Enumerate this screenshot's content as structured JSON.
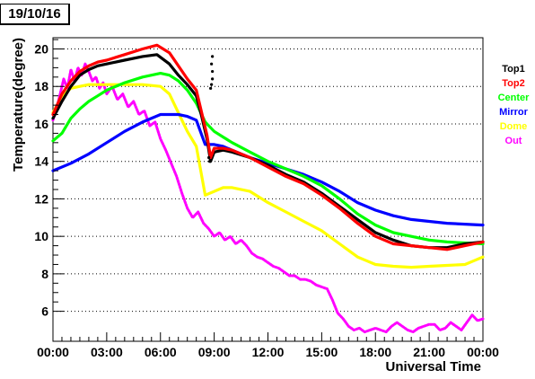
{
  "page": {
    "date_label": "19/10/16"
  },
  "chart_data": {
    "type": "line",
    "title": "",
    "xlabel": "Universal Time",
    "ylabel": "Temperature(degree)",
    "x_unit": "hours",
    "xlim": [
      0,
      24
    ],
    "ylim": [
      4.4,
      20.6
    ],
    "x_ticks": [
      {
        "value": 0,
        "label": "00:00"
      },
      {
        "value": 3,
        "label": "03:00"
      },
      {
        "value": 6,
        "label": "06:00"
      },
      {
        "value": 9,
        "label": "09:00"
      },
      {
        "value": 12,
        "label": "12:00"
      },
      {
        "value": 15,
        "label": "15:00"
      },
      {
        "value": 18,
        "label": "18:00"
      },
      {
        "value": 21,
        "label": "21:00"
      },
      {
        "value": 24,
        "label": "00:00"
      }
    ],
    "y_ticks": [
      {
        "value": 6,
        "label": "6"
      },
      {
        "value": 8,
        "label": "8"
      },
      {
        "value": 10,
        "label": "10"
      },
      {
        "value": 12,
        "label": "12"
      },
      {
        "value": 14,
        "label": "14"
      },
      {
        "value": 16,
        "label": "16"
      },
      {
        "value": 18,
        "label": "18"
      },
      {
        "value": 20,
        "label": "20"
      }
    ],
    "grid": "horizontal dotted",
    "legend_position": "right",
    "series": [
      {
        "name": "Top1",
        "color": "#000000",
        "x": [
          0,
          0.5,
          1,
          1.5,
          2,
          2.5,
          3,
          4,
          5,
          5.8,
          6.5,
          7,
          7.5,
          8,
          8.3,
          8.6,
          8.8,
          9,
          9.5,
          10,
          11,
          12,
          13,
          14,
          15,
          16,
          17,
          18,
          19,
          20,
          21,
          22,
          23,
          24
        ],
        "y": [
          16.3,
          17.2,
          18.0,
          18.6,
          18.9,
          19.1,
          19.2,
          19.4,
          19.6,
          19.7,
          19.2,
          18.6,
          18.1,
          17.5,
          16.4,
          15.2,
          14.0,
          14.5,
          14.6,
          14.5,
          14.2,
          13.8,
          13.3,
          12.9,
          12.3,
          11.6,
          10.9,
          10.2,
          9.8,
          9.5,
          9.4,
          9.4,
          9.6,
          9.7
        ]
      },
      {
        "name": "Top2",
        "color": "#ff0000",
        "x": [
          0,
          0.5,
          1,
          1.5,
          2,
          2.5,
          3,
          4,
          5,
          5.8,
          6.5,
          7,
          7.5,
          8,
          8.3,
          8.6,
          8.8,
          9,
          9.5,
          10,
          11,
          12,
          13,
          14,
          15,
          16,
          17,
          18,
          19,
          20,
          21,
          22,
          23,
          24
        ],
        "y": [
          16.5,
          17.6,
          18.3,
          18.8,
          19.1,
          19.3,
          19.4,
          19.7,
          20.0,
          20.2,
          19.8,
          19.1,
          18.4,
          17.8,
          16.6,
          15.4,
          14.2,
          14.7,
          14.7,
          14.6,
          14.2,
          13.7,
          13.2,
          12.8,
          12.2,
          11.5,
          10.7,
          10.0,
          9.6,
          9.5,
          9.4,
          9.3,
          9.5,
          9.7
        ]
      },
      {
        "name": "Center",
        "color": "#00ff00",
        "x": [
          0,
          0.5,
          1,
          1.5,
          2,
          2.5,
          3,
          4,
          5,
          6,
          6.5,
          7,
          7.5,
          8,
          8.5,
          9,
          9.5,
          10,
          11,
          12,
          13,
          14,
          15,
          16,
          17,
          18,
          19,
          20,
          21,
          22,
          23,
          24
        ],
        "y": [
          15.1,
          15.5,
          16.3,
          16.8,
          17.2,
          17.5,
          17.8,
          18.2,
          18.5,
          18.7,
          18.6,
          18.3,
          17.8,
          17.1,
          16.1,
          15.6,
          15.3,
          15.0,
          14.5,
          14.0,
          13.6,
          13.2,
          12.7,
          12.0,
          11.2,
          10.6,
          10.2,
          10.0,
          9.8,
          9.7,
          9.65,
          9.6
        ]
      },
      {
        "name": "Mirror",
        "color": "#0000ff",
        "x": [
          0,
          1,
          2,
          3,
          4,
          5,
          6,
          7,
          7.5,
          8,
          8.5,
          9,
          9.5,
          10,
          11,
          12,
          13,
          14,
          15,
          16,
          17,
          18,
          19,
          20,
          21,
          22,
          23,
          24
        ],
        "y": [
          13.5,
          13.9,
          14.4,
          15.0,
          15.6,
          16.1,
          16.5,
          16.5,
          16.4,
          16.2,
          14.9,
          14.9,
          14.8,
          14.6,
          14.2,
          13.9,
          13.6,
          13.3,
          12.9,
          12.4,
          11.8,
          11.4,
          11.1,
          10.9,
          10.8,
          10.7,
          10.65,
          10.6
        ]
      },
      {
        "name": "Dome",
        "color": "#ffff00",
        "x": [
          0,
          0.5,
          1,
          1.5,
          2,
          2.5,
          3,
          4,
          5,
          6,
          6.5,
          7,
          7.5,
          8,
          8.5,
          9,
          9.5,
          10,
          11,
          12,
          13,
          14,
          15,
          16,
          17,
          17.5,
          18,
          19,
          20,
          21,
          22,
          23,
          23.5,
          24
        ],
        "y": [
          16.6,
          17.5,
          17.9,
          18.0,
          18.1,
          18.1,
          18.1,
          18.1,
          18.1,
          18.0,
          17.6,
          16.6,
          15.6,
          14.8,
          12.2,
          12.4,
          12.6,
          12.6,
          12.4,
          11.8,
          11.3,
          10.8,
          10.3,
          9.6,
          8.9,
          8.7,
          8.5,
          8.4,
          8.35,
          8.4,
          8.45,
          8.5,
          8.7,
          8.9
        ]
      },
      {
        "name": "Out",
        "color": "#ff00ff",
        "x": [
          0,
          0.2,
          0.4,
          0.6,
          0.8,
          1.0,
          1.2,
          1.4,
          1.6,
          1.8,
          2.0,
          2.2,
          2.4,
          2.6,
          2.8,
          3.0,
          3.3,
          3.6,
          3.9,
          4.2,
          4.5,
          4.8,
          5.1,
          5.4,
          5.7,
          6.0,
          6.3,
          6.6,
          6.9,
          7.2,
          7.5,
          7.8,
          8.1,
          8.4,
          8.7,
          9.0,
          9.3,
          9.6,
          9.9,
          10.2,
          10.5,
          10.8,
          11.1,
          11.4,
          11.7,
          12.0,
          12.3,
          12.6,
          12.9,
          13.2,
          13.5,
          13.8,
          14.1,
          14.4,
          14.7,
          15.0,
          15.3,
          15.6,
          15.9,
          16.2,
          16.5,
          16.8,
          17.1,
          17.4,
          17.7,
          18.0,
          18.3,
          18.6,
          18.9,
          19.2,
          19.5,
          19.8,
          20.1,
          20.4,
          20.7,
          21.0,
          21.3,
          21.6,
          21.9,
          22.2,
          22.5,
          22.8,
          23.1,
          23.4,
          23.7,
          24.0
        ],
        "y": [
          16.2,
          16.8,
          17.6,
          18.4,
          17.9,
          18.9,
          18.3,
          19.0,
          18.6,
          19.2,
          18.8,
          18.3,
          18.5,
          17.9,
          18.2,
          17.6,
          18.0,
          17.3,
          17.6,
          16.9,
          17.2,
          16.5,
          16.7,
          15.9,
          16.1,
          15.2,
          14.6,
          13.9,
          13.2,
          12.3,
          11.5,
          11.0,
          11.3,
          10.7,
          10.4,
          10.0,
          10.2,
          9.8,
          10.0,
          9.6,
          9.8,
          9.5,
          9.1,
          8.9,
          8.8,
          8.6,
          8.4,
          8.3,
          8.1,
          7.9,
          7.9,
          7.7,
          7.7,
          7.6,
          7.4,
          7.3,
          7.2,
          6.6,
          5.9,
          5.6,
          5.2,
          5.0,
          5.1,
          4.9,
          5.0,
          5.1,
          5.0,
          4.9,
          5.2,
          5.4,
          5.2,
          5.0,
          4.9,
          5.1,
          5.2,
          5.3,
          5.3,
          5.0,
          5.1,
          5.4,
          5.2,
          5.0,
          5.4,
          5.8,
          5.5,
          5.6
        ]
      }
    ],
    "extra_points": {
      "color": "#000000",
      "x": [
        8.7,
        8.75,
        8.8,
        8.85,
        8.9,
        8.9,
        8.85,
        8.9
      ],
      "y": [
        14.2,
        14.0,
        17.9,
        18.1,
        18.4,
        18.8,
        19.2,
        19.6
      ]
    }
  }
}
